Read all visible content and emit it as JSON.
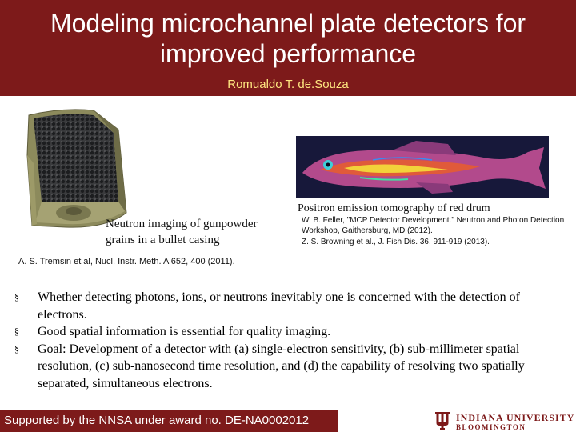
{
  "slide": {
    "title": "Modeling microchannel plate detectors for improved performance",
    "author": "Romualdo T. de.Souza"
  },
  "figures": {
    "neutron": {
      "caption_line1": "Neutron imaging of gunpowder",
      "caption_line2": "grains in a bullet casing",
      "reference": "A. S. Tremsin et al, Nucl. Instr. Meth. A 652, 400 (2011)."
    },
    "positron": {
      "caption": "Positron emission tomography of red drum",
      "reference_feller": "W. B. Feller, \"MCP Detector Development.\" Neutron and Photon Detection Workshop, Gaithersburg, MD (2012).",
      "reference_browning": "Z. S. Browning et al., J. Fish Dis. 36, 911-919 (2013)."
    }
  },
  "bullets": [
    {
      "marker": "§",
      "text": "Whether detecting photons, ions, or neutrons inevitably one is concerned with the detection of electrons."
    },
    {
      "marker": "§",
      "text": "Good spatial information is essential for quality imaging."
    },
    {
      "marker": "§",
      "text": "Goal: Development of a detector with (a) single-electron sensitivity, (b) sub-millimeter spatial resolution, (c) sub-nanosecond time resolution, and (d) the capability of resolving two spatially separated, simultaneous electrons."
    }
  ],
  "footer": {
    "text": "Supported by the NNSA under award no. DE-NA0002012",
    "logo_name": "INDIANA UNIVERSITY",
    "logo_campus": "BLOOMINGTON",
    "logo_icon": "iu-trident-icon"
  },
  "colors": {
    "brand_crimson": "#7d1a1a",
    "author_yellow": "#ffe680",
    "fish_background": "#17183a"
  }
}
